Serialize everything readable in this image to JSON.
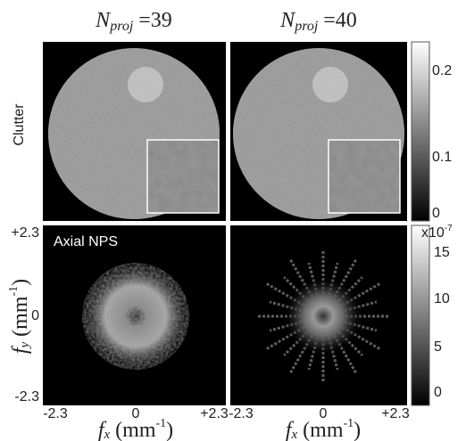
{
  "columns": [
    {
      "title": {
        "base": "N",
        "sub": "proj",
        "rest": " =39"
      }
    },
    {
      "title": {
        "base": "N",
        "sub": "proj",
        "rest": " =40"
      }
    }
  ],
  "rows": [
    {
      "label": "Clutter"
    },
    {
      "label": "Axial NPS"
    }
  ],
  "colorbars": [
    {
      "ticks": [
        "0.2",
        "0.1",
        "0"
      ]
    },
    {
      "exponent": {
        "base": "x10",
        "sup": "-7"
      },
      "ticks": [
        "15",
        "10",
        "5",
        "0"
      ]
    }
  ],
  "y_axis": {
    "label": {
      "base": "f",
      "sub": "y",
      "rest": " (mm",
      "sup": "-1",
      "end": ")"
    },
    "ticks": [
      "+2.3",
      "0",
      "-2.3"
    ]
  },
  "x_axis": {
    "label": {
      "base": "f",
      "sub": "x",
      "rest": " (mm",
      "sup": "-1",
      "end": ")"
    },
    "ticks": [
      "-2.3",
      "0",
      "+2.3"
    ]
  }
}
